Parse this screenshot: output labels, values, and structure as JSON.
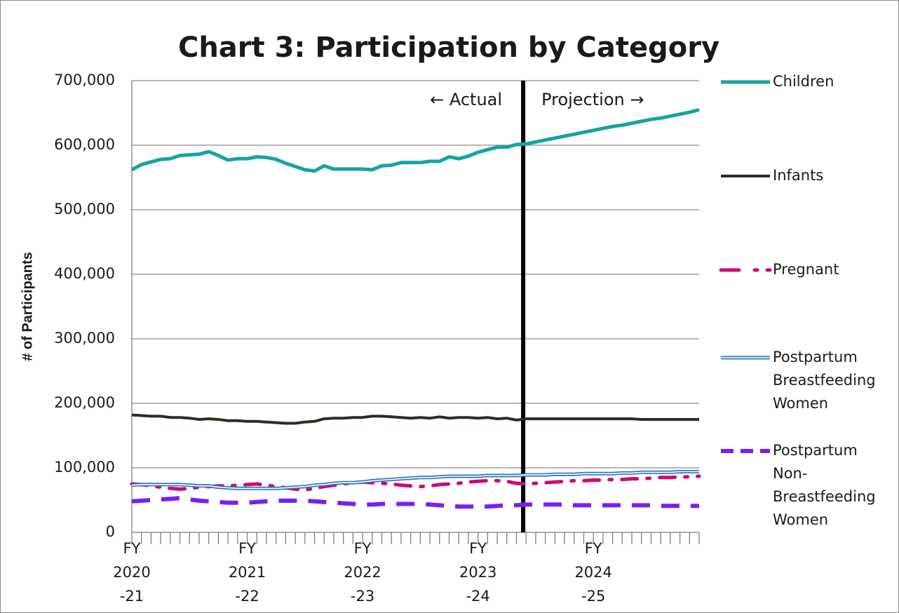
{
  "chart_data": {
    "type": "line",
    "title": "Chart 3: Participation by Category",
    "y_label": "# of Participants",
    "annotations": [
      "← Actual",
      "Projection →"
    ],
    "categories": [
      "FY\n2020\n-21",
      null,
      null,
      null,
      null,
      null,
      null,
      null,
      null,
      null,
      null,
      null,
      "FY\n2021\n-22",
      null,
      null,
      null,
      null,
      null,
      null,
      null,
      null,
      null,
      null,
      null,
      "FY\n2022\n-23",
      null,
      null,
      null,
      null,
      null,
      null,
      null,
      null,
      null,
      null,
      null,
      "FY\n2023\n-24",
      null,
      null,
      null,
      null,
      null,
      null,
      null,
      null,
      null,
      null,
      null,
      "FY\n2024\n-25",
      null,
      null,
      null,
      null,
      null,
      null,
      null,
      null,
      null,
      null,
      null
    ],
    "ylim": [
      0,
      700000
    ],
    "yticks": [
      0,
      {
        "value": 100000,
        "label": "100,000"
      },
      {
        "value": 200000,
        "label": "200,000"
      },
      {
        "value": 300000,
        "label": "300,000"
      },
      {
        "value": 400000,
        "label": "400,000"
      },
      {
        "value": 500000,
        "label": "500,000"
      },
      {
        "value": 600000,
        "label": "600,000"
      },
      {
        "value": 700000,
        "label": "700,000"
      }
    ],
    "grid": true,
    "legend": "right",
    "series": [
      {
        "name": "Children",
        "color": "#17a3a3",
        "line_style": "solid",
        "values": [
          562000,
          570000,
          574000,
          578000,
          579000,
          584000,
          585000,
          586000,
          590000,
          584000,
          577000,
          579000,
          579000,
          582000,
          581000,
          578000,
          572000,
          567000,
          562000,
          560000,
          568000,
          563000,
          563000,
          563000,
          563000,
          562000,
          568000,
          569000,
          573000,
          573000,
          573000,
          575000,
          575000,
          582000,
          579000,
          583000,
          589000,
          593000,
          597000,
          597000,
          601000,
          602000,
          605000,
          608000,
          611000,
          614000,
          617000,
          620000,
          623000,
          626000,
          629000,
          631000,
          634000,
          637000,
          640000,
          642000,
          645000,
          648000,
          651000,
          655000
        ]
      },
      {
        "name": "Infants",
        "color": "#283022",
        "line_style": "solid",
        "values": [
          182000,
          181000,
          180000,
          180000,
          178000,
          178000,
          177000,
          175000,
          176000,
          175000,
          173000,
          173000,
          172000,
          172000,
          171000,
          170000,
          169000,
          169000,
          171000,
          172000,
          176000,
          177000,
          177000,
          178000,
          178000,
          180000,
          180000,
          179000,
          178000,
          177000,
          178000,
          177000,
          179000,
          177000,
          178000,
          178000,
          177000,
          178000,
          176000,
          177000,
          174000,
          176000,
          176000,
          176000,
          176000,
          176000,
          176000,
          176000,
          176000,
          176000,
          176000,
          176000,
          176000,
          175000,
          175000,
          175000,
          175000,
          175000,
          175000,
          175000
        ]
      },
      {
        "name": "Pregnant",
        "color": "#cc0a78",
        "line_style": "dash-dot",
        "values": [
          75000,
          74000,
          72000,
          70000,
          68000,
          67000,
          68000,
          70000,
          71000,
          72000,
          72000,
          73000,
          74000,
          75000,
          73000,
          71000,
          69000,
          67000,
          66000,
          68000,
          71000,
          73000,
          75000,
          77000,
          78000,
          77000,
          76000,
          75000,
          73000,
          72000,
          71000,
          72000,
          74000,
          75000,
          76000,
          78000,
          79000,
          80000,
          80000,
          79000,
          76000,
          75000,
          76000,
          77000,
          78000,
          79000,
          80000,
          80000,
          81000,
          81000,
          82000,
          82000,
          83000,
          83000,
          84000,
          85000,
          85000,
          86000,
          86000,
          87000
        ]
      },
      {
        "name": "Postpartum\nBreastfeeding\nWomen",
        "color": "#2a78c0",
        "line_style": "double",
        "values": [
          73000,
          74000,
          74000,
          74000,
          74000,
          74000,
          73000,
          72000,
          72000,
          70000,
          69000,
          68000,
          68000,
          68000,
          68000,
          68000,
          69000,
          70000,
          71000,
          73000,
          74000,
          76000,
          77000,
          77000,
          78000,
          80000,
          81000,
          82000,
          83000,
          84000,
          85000,
          85000,
          86000,
          87000,
          87000,
          87000,
          87000,
          88000,
          88000,
          88000,
          88000,
          89000,
          89000,
          89000,
          90000,
          90000,
          90000,
          91000,
          91000,
          91000,
          91000,
          92000,
          92000,
          93000,
          93000,
          93000,
          93000,
          94000,
          94000,
          94000
        ]
      },
      {
        "name": "Postpartum\nNon-\nBreastfeeding\nWomen",
        "color": "#7a1ff2",
        "line_style": "dash",
        "values": [
          48000,
          49000,
          50000,
          51000,
          52000,
          53000,
          51000,
          49000,
          48000,
          47000,
          46000,
          46000,
          46000,
          47000,
          48000,
          49000,
          49000,
          49000,
          49000,
          48000,
          47000,
          46000,
          45000,
          44000,
          43000,
          43000,
          44000,
          44000,
          44000,
          44000,
          44000,
          43000,
          42000,
          41000,
          40000,
          40000,
          40000,
          40000,
          41000,
          42000,
          42000,
          43000,
          43000,
          43000,
          43000,
          43000,
          42000,
          42000,
          42000,
          42000,
          42000,
          42000,
          42000,
          42000,
          42000,
          41000,
          41000,
          41000,
          41000,
          41000
        ]
      }
    ]
  }
}
